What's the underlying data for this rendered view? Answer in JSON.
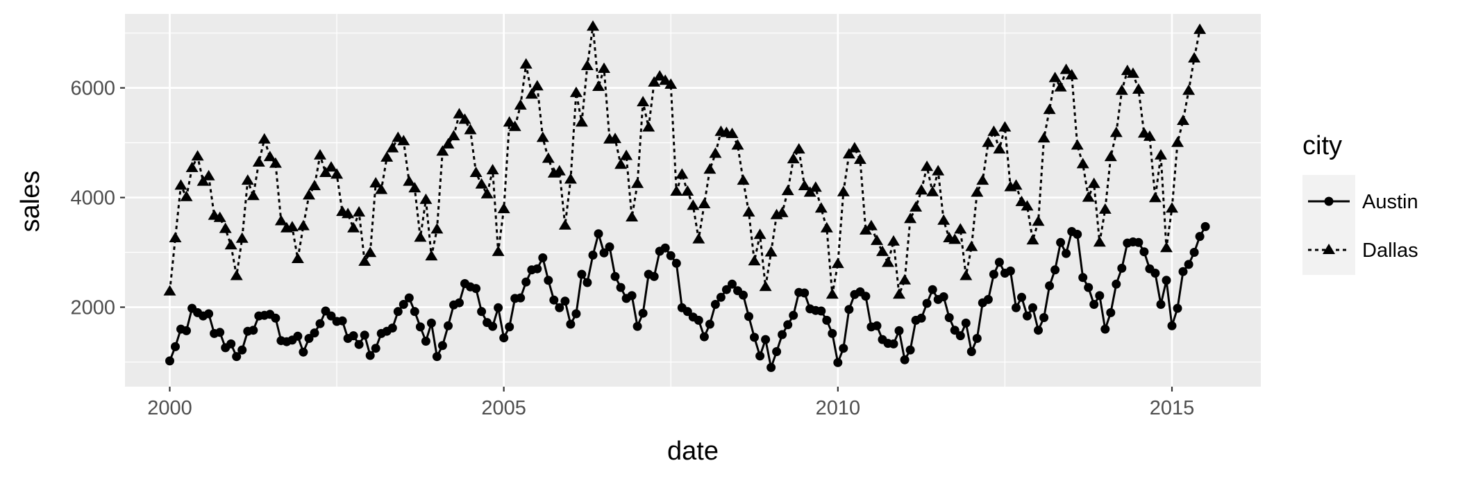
{
  "chart_data": {
    "type": "line",
    "xlabel": "date",
    "ylabel": "sales",
    "x_ticks": [
      "2000",
      "2005",
      "2010",
      "2015"
    ],
    "y_ticks": [
      "2000",
      "4000",
      "6000"
    ],
    "xlim": [
      1999.33,
      2016.33
    ],
    "ylim": [
      550,
      7350
    ],
    "x_start": 2000.0,
    "x_step": 0.0833333,
    "grid": true,
    "background": "#ebebeb",
    "legend": {
      "title": "city",
      "position": "right",
      "entries": [
        "Austin",
        "Dallas"
      ]
    },
    "series": [
      {
        "name": "Austin",
        "marker": "circle",
        "line": "solid",
        "color": "#000000",
        "values": [
          1020,
          1280,
          1600,
          1570,
          1980,
          1900,
          1840,
          1880,
          1520,
          1540,
          1260,
          1330,
          1100,
          1220,
          1560,
          1580,
          1840,
          1850,
          1870,
          1800,
          1390,
          1370,
          1400,
          1470,
          1180,
          1430,
          1530,
          1700,
          1930,
          1840,
          1740,
          1750,
          1430,
          1480,
          1320,
          1490,
          1120,
          1250,
          1520,
          1560,
          1620,
          1920,
          2050,
          2170,
          1920,
          1640,
          1380,
          1710,
          1100,
          1300,
          1660,
          2040,
          2080,
          2430,
          2370,
          2340,
          1920,
          1720,
          1650,
          1990,
          1440,
          1640,
          2160,
          2170,
          2460,
          2680,
          2700,
          2900,
          2490,
          2130,
          1990,
          2110,
          1690,
          1880,
          2600,
          2450,
          2950,
          3340,
          2990,
          3100,
          2560,
          2360,
          2160,
          2210,
          1650,
          1890,
          2600,
          2560,
          3020,
          3080,
          2940,
          2800,
          1990,
          1920,
          1820,
          1760,
          1460,
          1690,
          2050,
          2180,
          2320,
          2420,
          2300,
          2220,
          1830,
          1450,
          1110,
          1410,
          900,
          1190,
          1500,
          1680,
          1850,
          2270,
          2260,
          1970,
          1940,
          1930,
          1760,
          1520,
          990,
          1250,
          1960,
          2230,
          2280,
          2200,
          1640,
          1660,
          1410,
          1340,
          1330,
          1570,
          1040,
          1220,
          1760,
          1800,
          2070,
          2320,
          2140,
          2190,
          1810,
          1580,
          1480,
          1710,
          1190,
          1430,
          2080,
          2140,
          2600,
          2820,
          2620,
          2660,
          1990,
          2180,
          1840,
          1990,
          1580,
          1810,
          2390,
          2680,
          3180,
          2980,
          3380,
          3330,
          2540,
          2360,
          2050,
          2210,
          1600,
          1900,
          2420,
          2710,
          3170,
          3190,
          3180,
          3010,
          2700,
          2620,
          2050,
          2490,
          1660,
          1980,
          2650,
          2780,
          3000,
          3290,
          3470
        ]
      },
      {
        "name": "Dallas",
        "marker": "triangle",
        "line": "dashed",
        "color": "#000000",
        "values": [
          2290,
          3260,
          4220,
          4010,
          4540,
          4750,
          4290,
          4390,
          3670,
          3630,
          3430,
          3130,
          2570,
          3250,
          4310,
          4030,
          4640,
          5060,
          4740,
          4620,
          3570,
          3440,
          3460,
          2880,
          3480,
          4040,
          4210,
          4770,
          4450,
          4550,
          4420,
          3740,
          3700,
          3440,
          3730,
          2830,
          2990,
          4260,
          4140,
          4730,
          4900,
          5090,
          5030,
          4290,
          4170,
          3270,
          3960,
          2930,
          3420,
          4840,
          4970,
          5120,
          5520,
          5420,
          5230,
          4450,
          4240,
          4060,
          4500,
          3010,
          3790,
          5370,
          5290,
          5680,
          6430,
          5880,
          6030,
          5090,
          4710,
          4440,
          4480,
          3490,
          4330,
          5910,
          5370,
          6400,
          7120,
          6020,
          6350,
          5060,
          5070,
          4600,
          4760,
          3640,
          4250,
          5740,
          5280,
          6100,
          6210,
          6130,
          6060,
          4110,
          4420,
          4110,
          3850,
          3240,
          3880,
          4510,
          4800,
          5200,
          5180,
          5160,
          4950,
          4310,
          3730,
          2840,
          3320,
          2370,
          3000,
          3680,
          3720,
          4120,
          4700,
          4880,
          4210,
          4090,
          4180,
          3800,
          3440,
          2230,
          2790,
          4100,
          4790,
          4900,
          4690,
          3400,
          3480,
          3210,
          3010,
          2810,
          3200,
          2230,
          2490,
          3610,
          3820,
          4130,
          4560,
          4100,
          4480,
          3580,
          3260,
          3230,
          3420,
          2570,
          3100,
          4090,
          4310,
          5000,
          5200,
          4880,
          5280,
          4190,
          4220,
          3920,
          3840,
          3220,
          3560,
          5080,
          5600,
          6180,
          6010,
          6330,
          6230,
          4950,
          4610,
          4000,
          4250,
          3180,
          3780,
          4740,
          5180,
          5950,
          6310,
          6260,
          5970,
          5170,
          5110,
          3990,
          4770,
          3080,
          3800,
          5000,
          5400,
          5950,
          6540,
          7060
        ]
      }
    ]
  }
}
